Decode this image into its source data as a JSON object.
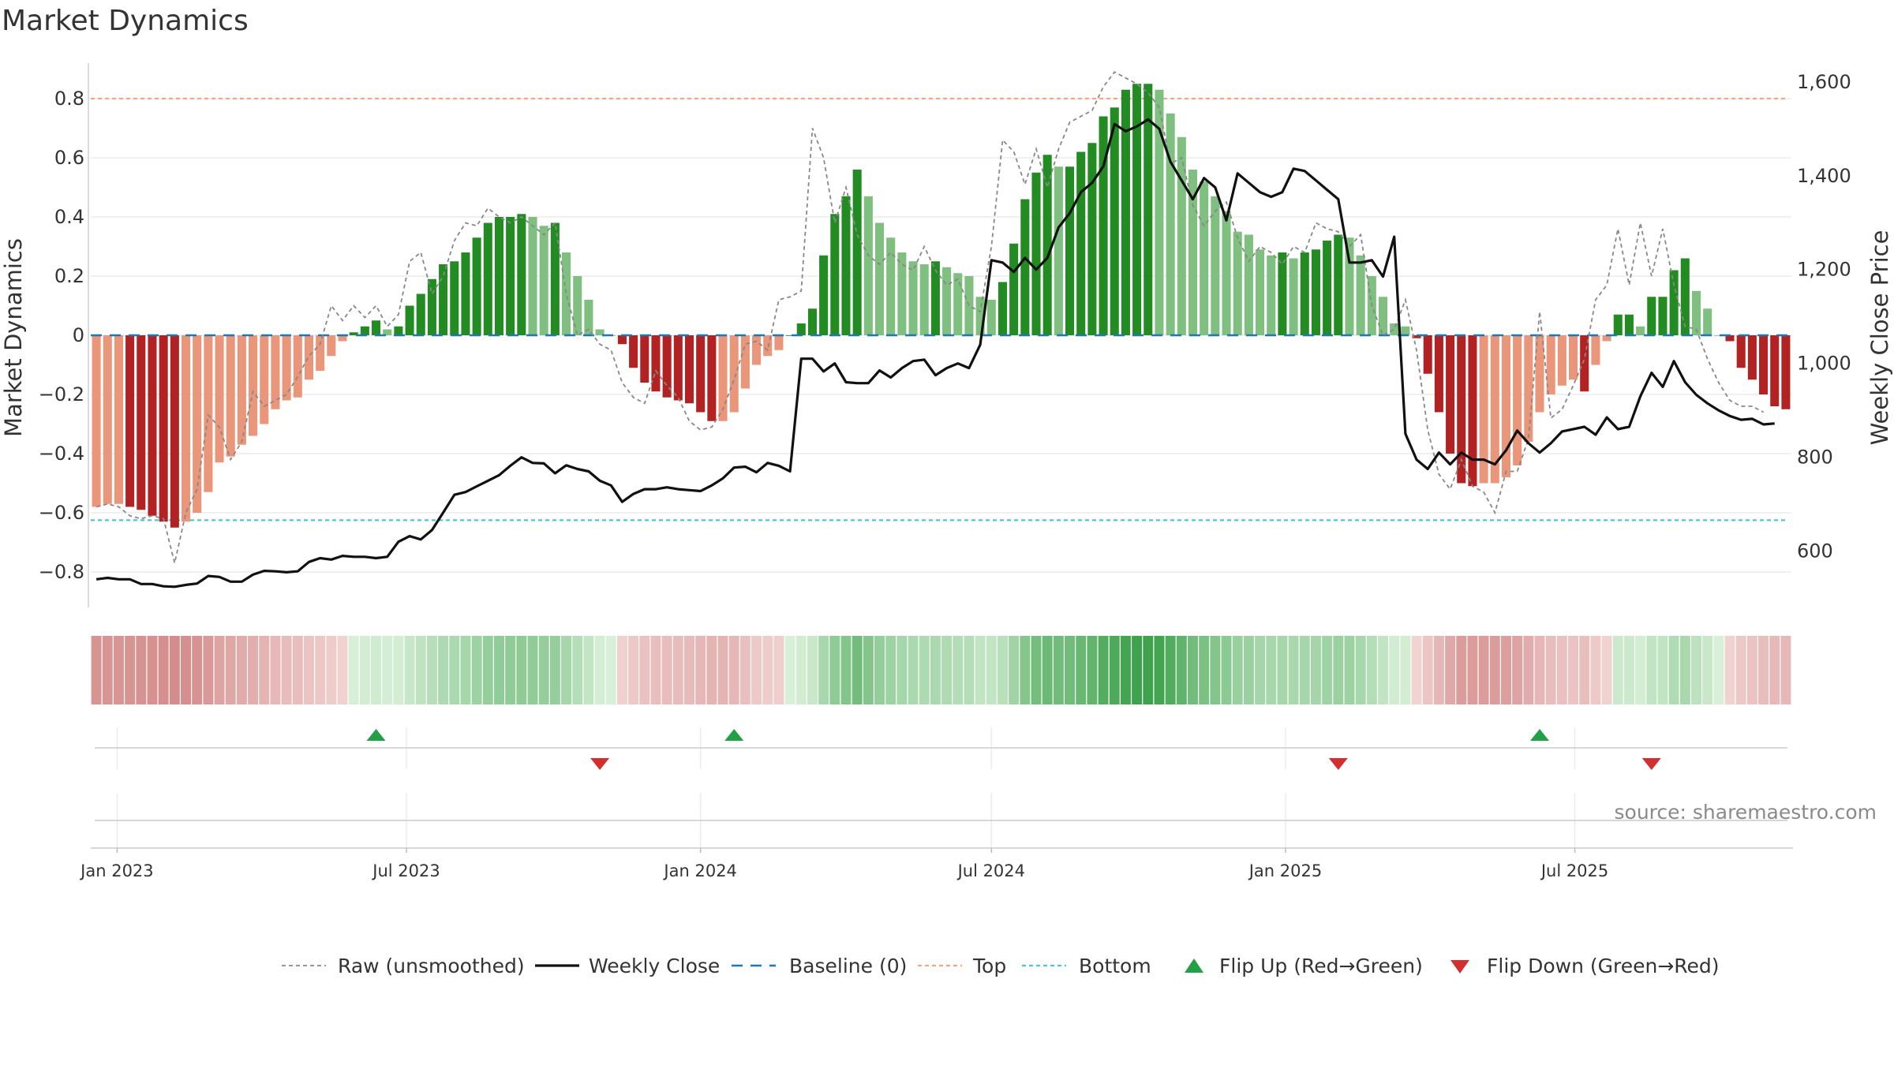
{
  "title": "Market Dynamics",
  "source": "source: sharemaestro.com",
  "chart_data": {
    "type": "bar",
    "title": "Market Dynamics",
    "ylabel_left": "Market Dynamics",
    "ylabel_right": "Weekly Close Price",
    "ylim_left": [
      -0.92,
      0.92
    ],
    "ylim_right": [
      480,
      1640
    ],
    "yticks_left": [
      -0.8,
      -0.6,
      -0.4,
      -0.2,
      0,
      0.2,
      0.4,
      0.6,
      0.8
    ],
    "yticks_right": [
      600,
      800,
      1000,
      1200,
      1400,
      1600
    ],
    "yticks_left_labels": [
      "−0.8",
      "−0.6",
      "−0.4",
      "−0.2",
      "0",
      "0.2",
      "0.4",
      "0.6",
      "0.8"
    ],
    "yticks_right_labels": [
      "600",
      "800",
      "1,000",
      "1,200",
      "1,400",
      "1,600"
    ],
    "x_start": "2022-12-19",
    "x_step_days": 7,
    "x_ticks": [
      {
        "label": "Jan 2023",
        "date": "2023-01-01"
      },
      {
        "label": "Jul 2023",
        "date": "2023-07-01"
      },
      {
        "label": "Jan 2024",
        "date": "2024-01-01"
      },
      {
        "label": "Jul 2024",
        "date": "2024-07-01"
      },
      {
        "label": "Jan 2025",
        "date": "2025-01-01"
      },
      {
        "label": "Jul 2025",
        "date": "2025-07-01"
      }
    ],
    "reference_lines": {
      "top": 0.8,
      "bottom": -0.625,
      "baseline": 0
    },
    "series": [
      {
        "name": "Market Dynamics",
        "values": [
          -0.58,
          -0.57,
          -0.57,
          -0.58,
          -0.59,
          -0.61,
          -0.63,
          -0.65,
          -0.63,
          -0.6,
          -0.53,
          -0.43,
          -0.41,
          -0.37,
          -0.34,
          -0.3,
          -0.25,
          -0.22,
          -0.21,
          -0.15,
          -0.12,
          -0.07,
          -0.02,
          0.01,
          0.03,
          0.05,
          0.02,
          0.03,
          0.1,
          0.14,
          0.19,
          0.24,
          0.25,
          0.28,
          0.33,
          0.38,
          0.4,
          0.4,
          0.41,
          0.4,
          0.37,
          0.38,
          0.28,
          0.2,
          0.12,
          0.02,
          0.0,
          -0.03,
          -0.11,
          -0.16,
          -0.19,
          -0.21,
          -0.22,
          -0.23,
          -0.26,
          -0.29,
          -0.29,
          -0.26,
          -0.18,
          -0.1,
          -0.07,
          -0.05,
          0.0,
          0.04,
          0.09,
          0.27,
          0.41,
          0.47,
          0.56,
          0.47,
          0.38,
          0.33,
          0.28,
          0.25,
          0.24,
          0.25,
          0.23,
          0.21,
          0.2,
          0.13,
          0.12,
          0.18,
          0.31,
          0.46,
          0.55,
          0.61,
          0.57,
          0.57,
          0.62,
          0.65,
          0.74,
          0.77,
          0.83,
          0.85,
          0.85,
          0.83,
          0.75,
          0.67,
          0.56,
          0.52,
          0.47,
          0.42,
          0.35,
          0.34,
          0.29,
          0.27,
          0.28,
          0.26,
          0.28,
          0.29,
          0.32,
          0.34,
          0.33,
          0.27,
          0.2,
          0.13,
          0.04,
          0.03,
          -0.01,
          -0.13,
          -0.26,
          -0.4,
          -0.5,
          -0.51,
          -0.5,
          -0.5,
          -0.48,
          -0.44,
          -0.36,
          -0.26,
          -0.2,
          -0.17,
          -0.15,
          -0.19,
          -0.1,
          -0.02,
          0.07,
          0.07,
          0.03,
          0.13,
          0.13,
          0.22,
          0.26,
          0.15,
          0.09,
          0.0,
          -0.02,
          -0.11,
          -0.15,
          -0.2,
          -0.24,
          -0.25
        ]
      },
      {
        "name": "Raw (unsmoothed)",
        "values": [
          -0.58,
          -0.57,
          -0.58,
          -0.61,
          -0.62,
          -0.61,
          -0.62,
          -0.77,
          -0.6,
          -0.52,
          -0.27,
          -0.31,
          -0.42,
          -0.36,
          -0.19,
          -0.24,
          -0.22,
          -0.2,
          -0.14,
          -0.07,
          -0.03,
          0.1,
          0.05,
          0.1,
          0.06,
          0.1,
          0.03,
          0.07,
          0.25,
          0.28,
          0.14,
          0.2,
          0.32,
          0.38,
          0.37,
          0.43,
          0.4,
          0.38,
          0.4,
          0.37,
          0.34,
          0.38,
          0.14,
          0.0,
          0.02,
          -0.03,
          -0.05,
          -0.16,
          -0.21,
          -0.23,
          -0.12,
          -0.17,
          -0.21,
          -0.29,
          -0.32,
          -0.31,
          -0.25,
          -0.15,
          -0.03,
          -0.02,
          -0.05,
          0.12,
          0.13,
          0.15,
          0.7,
          0.6,
          0.38,
          0.5,
          0.34,
          0.27,
          0.24,
          0.28,
          0.24,
          0.22,
          0.3,
          0.22,
          0.17,
          0.19,
          0.1,
          0.08,
          0.3,
          0.66,
          0.62,
          0.51,
          0.63,
          0.5,
          0.63,
          0.72,
          0.74,
          0.76,
          0.84,
          0.89,
          0.87,
          0.85,
          0.82,
          0.77,
          0.58,
          0.6,
          0.44,
          0.37,
          0.42,
          0.45,
          0.33,
          0.25,
          0.3,
          0.28,
          0.24,
          0.3,
          0.28,
          0.38,
          0.36,
          0.35,
          0.3,
          0.34,
          0.1,
          0.0,
          0.02,
          0.12,
          -0.05,
          -0.32,
          -0.47,
          -0.52,
          -0.42,
          -0.51,
          -0.53,
          -0.6,
          -0.46,
          -0.46,
          -0.35,
          0.08,
          -0.28,
          -0.25,
          -0.17,
          -0.08,
          0.12,
          0.17,
          0.36,
          0.17,
          0.38,
          0.2,
          0.36,
          0.17,
          0.03,
          0.02,
          -0.08,
          -0.16,
          -0.22,
          -0.24,
          -0.24,
          -0.26
        ]
      },
      {
        "name": "Weekly Close",
        "axis": "right",
        "values": [
          540,
          543,
          540,
          540,
          530,
          530,
          525,
          524,
          528,
          531,
          547,
          545,
          535,
          535,
          550,
          558,
          557,
          555,
          557,
          577,
          585,
          582,
          590,
          588,
          588,
          585,
          588,
          620,
          632,
          625,
          645,
          682,
          720,
          726,
          738,
          750,
          762,
          782,
          800,
          788,
          787,
          766,
          783,
          775,
          770,
          750,
          740,
          705,
          722,
          732,
          732,
          736,
          732,
          730,
          728,
          740,
          755,
          778,
          780,
          768,
          788,
          782,
          770,
          1010,
          1010,
          983,
          1000,
          960,
          958,
          958,
          985,
          970,
          990,
          1005,
          1008,
          975,
          990,
          1000,
          990,
          1040,
          1220,
          1215,
          1195,
          1225,
          1200,
          1225,
          1290,
          1320,
          1365,
          1385,
          1420,
          1510,
          1495,
          1505,
          1520,
          1500,
          1430,
          1390,
          1350,
          1395,
          1375,
          1305,
          1405,
          1385,
          1365,
          1355,
          1365,
          1415,
          1410,
          1390,
          1370,
          1350,
          1215,
          1215,
          1220,
          1185,
          1270,
          850,
          795,
          775,
          810,
          785,
          810,
          795,
          795,
          785,
          815,
          857,
          830,
          810,
          830,
          855,
          860,
          865,
          848,
          885,
          860,
          865,
          930,
          980,
          950,
          1005,
          960,
          933,
          915,
          900,
          888,
          880,
          882,
          870,
          872
        ]
      }
    ],
    "flips": [
      {
        "date": "2023-06-12",
        "direction": "up"
      },
      {
        "date": "2023-10-30",
        "direction": "down"
      },
      {
        "date": "2024-01-22",
        "direction": "up"
      },
      {
        "date": "2025-02-03",
        "direction": "down"
      },
      {
        "date": "2025-06-09",
        "direction": "up"
      },
      {
        "date": "2025-08-18",
        "direction": "down"
      }
    ],
    "legend": {
      "position": "bottom",
      "entries": [
        {
          "label": "Raw (unsmoothed)",
          "style": "dashed-grey"
        },
        {
          "label": "Weekly Close",
          "style": "solid-black"
        },
        {
          "label": "Baseline (0)",
          "style": "dashed-blue"
        },
        {
          "label": "Top",
          "style": "dotted-orange"
        },
        {
          "label": "Bottom",
          "style": "dotted-cyan"
        },
        {
          "label": "Flip Up (Red→Green)",
          "style": "triangle-up-green"
        },
        {
          "label": "Flip Down (Green→Red)",
          "style": "triangle-down-red"
        }
      ]
    },
    "grid": true
  },
  "colors": {
    "pos_strong": "#228b22",
    "pos_weak": "#7fbf7f",
    "neg_strong": "#b22222",
    "neg_weak": "#e9967a",
    "top_line": "#f4a582",
    "bottom_line": "#4fc3d9",
    "baseline": "#1f77b4",
    "raw_line": "#888888",
    "close_line": "#111111",
    "flip_up": "#22a046",
    "flip_down": "#d32f2f"
  }
}
